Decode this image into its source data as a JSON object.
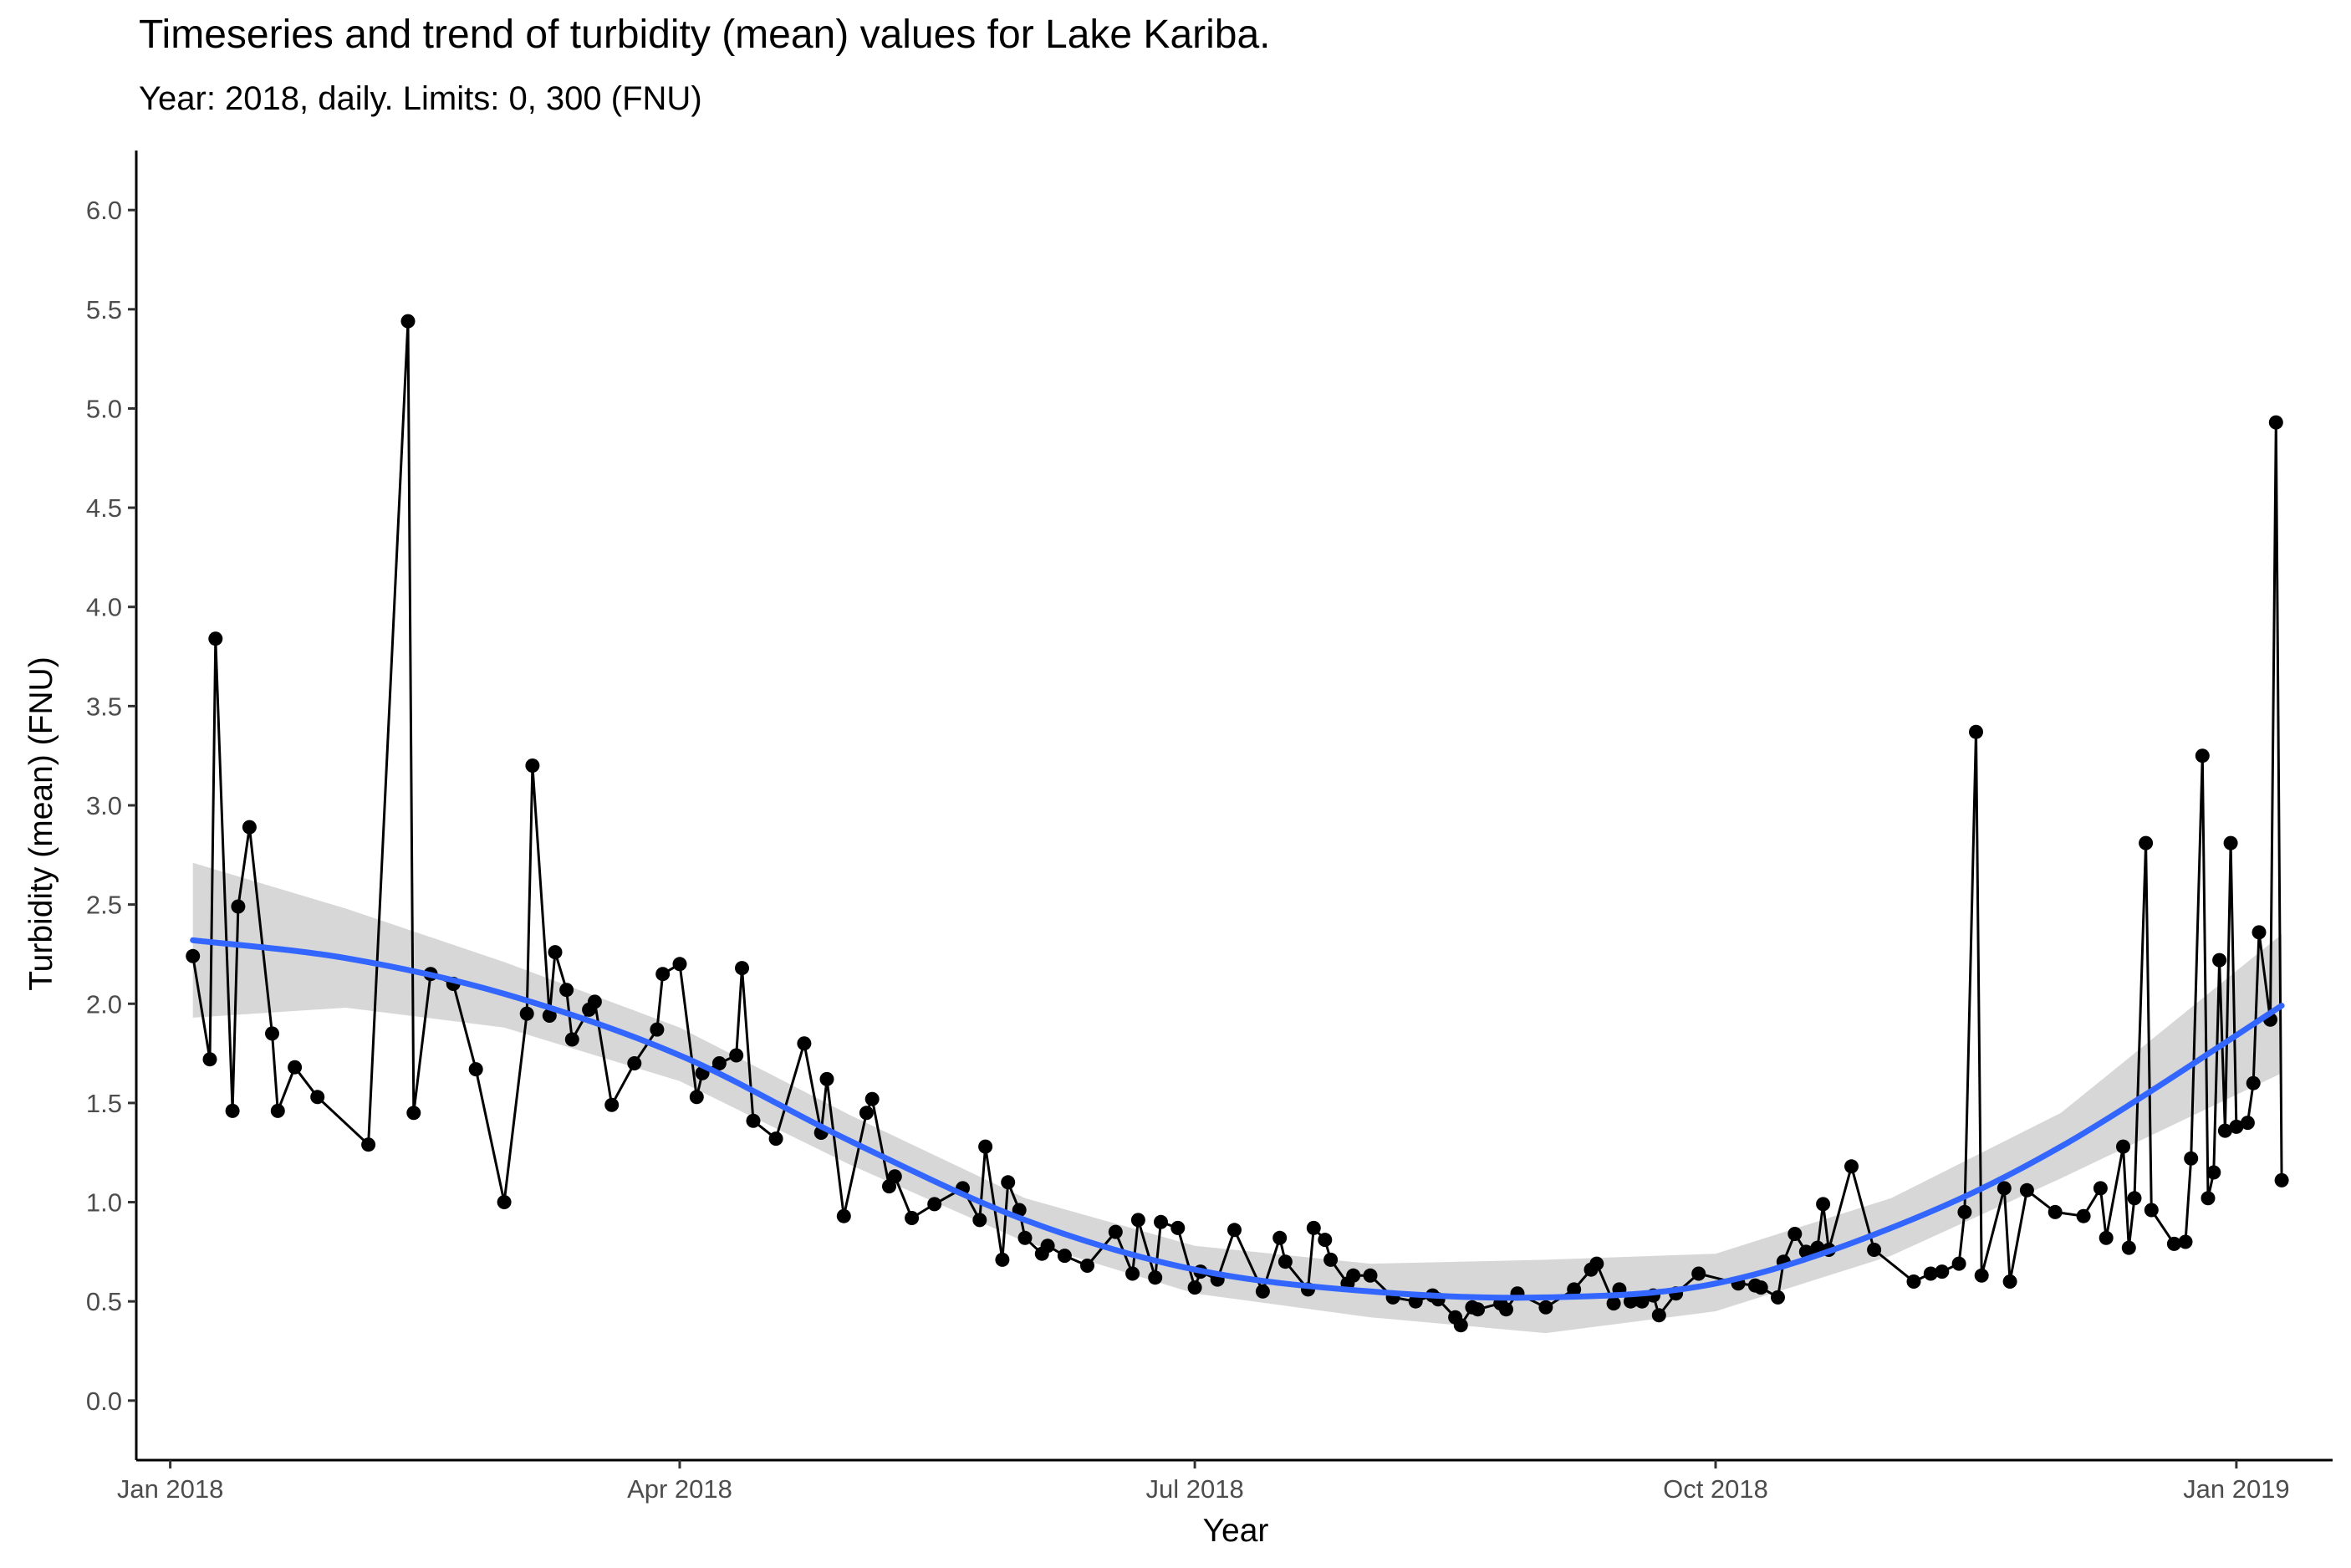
{
  "title": "Timeseries and trend of turbidity (mean) values for Lake Kariba.",
  "subtitle": "Year: 2018, daily. Limits: 0, 300 (FNU)",
  "colors": {
    "line": "#000000",
    "point": "#000000",
    "trend": "#3366ff",
    "ribbon": "#d3d3d3"
  },
  "chart_data": {
    "type": "line",
    "title": "Timeseries and trend of turbidity (mean) values for Lake Kariba.",
    "subtitle": "Year: 2018, daily. Limits: 0, 300 (FNU)",
    "xlabel": "Year",
    "ylabel": "Turbidity (mean) (FNU)",
    "xlim": [
      "2017-12-26",
      "2019-01-18"
    ],
    "ylim": [
      -0.3,
      6.3
    ],
    "x_ticks": [
      {
        "date": "2018-01-01",
        "label": "Jan 2018"
      },
      {
        "date": "2018-04-01",
        "label": "Apr 2018"
      },
      {
        "date": "2018-07-01",
        "label": "Jul 2018"
      },
      {
        "date": "2018-10-01",
        "label": "Oct 2018"
      },
      {
        "date": "2019-01-01",
        "label": "Jan 2019"
      }
    ],
    "y_ticks": [
      "0.0",
      "0.5",
      "1.0",
      "1.5",
      "2.0",
      "2.5",
      "3.0",
      "3.5",
      "4.0",
      "4.5",
      "5.0",
      "5.5",
      "6.0"
    ],
    "grid": false,
    "series": [
      {
        "points": [
          [
            "2018-01-05",
            2.24
          ],
          [
            "2018-01-08",
            1.72
          ],
          [
            "2018-01-09",
            3.84
          ],
          [
            "2018-01-12",
            1.46
          ],
          [
            "2018-01-13",
            2.49
          ],
          [
            "2018-01-15",
            2.89
          ],
          [
            "2018-01-19",
            1.85
          ],
          [
            "2018-01-20",
            1.46
          ],
          [
            "2018-01-23",
            1.68
          ],
          [
            "2018-01-27",
            1.53
          ],
          [
            "2018-02-05",
            1.29
          ],
          [
            "2018-02-12",
            5.44
          ],
          [
            "2018-02-13",
            1.45
          ],
          [
            "2018-02-16",
            2.15
          ],
          [
            "2018-02-20",
            2.1
          ],
          [
            "2018-02-24",
            1.67
          ],
          [
            "2018-03-01",
            1.0
          ],
          [
            "2018-03-05",
            1.95
          ],
          [
            "2018-03-06",
            3.2
          ],
          [
            "2018-03-09",
            1.94
          ],
          [
            "2018-03-10",
            2.26
          ],
          [
            "2018-03-12",
            2.07
          ],
          [
            "2018-03-13",
            1.82
          ],
          [
            "2018-03-16",
            1.97
          ],
          [
            "2018-03-17",
            2.01
          ],
          [
            "2018-03-20",
            1.49
          ],
          [
            "2018-03-24",
            1.7
          ],
          [
            "2018-03-28",
            1.87
          ],
          [
            "2018-03-29",
            2.15
          ],
          [
            "2018-04-01",
            2.2
          ],
          [
            "2018-04-04",
            1.53
          ],
          [
            "2018-04-05",
            1.65
          ],
          [
            "2018-04-08",
            1.7
          ],
          [
            "2018-04-11",
            1.74
          ],
          [
            "2018-04-12",
            2.18
          ],
          [
            "2018-04-14",
            1.41
          ],
          [
            "2018-04-18",
            1.32
          ],
          [
            "2018-04-23",
            1.8
          ],
          [
            "2018-04-26",
            1.35
          ],
          [
            "2018-04-27",
            1.62
          ],
          [
            "2018-04-30",
            0.93
          ],
          [
            "2018-05-04",
            1.45
          ],
          [
            "2018-05-05",
            1.52
          ],
          [
            "2018-05-08",
            1.08
          ],
          [
            "2018-05-09",
            1.13
          ],
          [
            "2018-05-12",
            0.92
          ],
          [
            "2018-05-16",
            0.99
          ],
          [
            "2018-05-21",
            1.07
          ],
          [
            "2018-05-24",
            0.91
          ],
          [
            "2018-05-25",
            1.28
          ],
          [
            "2018-05-28",
            0.71
          ],
          [
            "2018-05-29",
            1.1
          ],
          [
            "2018-05-31",
            0.96
          ],
          [
            "2018-06-01",
            0.82
          ],
          [
            "2018-06-04",
            0.74
          ],
          [
            "2018-06-05",
            0.78
          ],
          [
            "2018-06-08",
            0.73
          ],
          [
            "2018-06-12",
            0.68
          ],
          [
            "2018-06-17",
            0.85
          ],
          [
            "2018-06-20",
            0.64
          ],
          [
            "2018-06-21",
            0.91
          ],
          [
            "2018-06-24",
            0.62
          ],
          [
            "2018-06-25",
            0.9
          ],
          [
            "2018-06-28",
            0.87
          ],
          [
            "2018-07-01",
            0.57
          ],
          [
            "2018-07-02",
            0.65
          ],
          [
            "2018-07-05",
            0.61
          ],
          [
            "2018-07-08",
            0.86
          ],
          [
            "2018-07-13",
            0.55
          ],
          [
            "2018-07-16",
            0.82
          ],
          [
            "2018-07-17",
            0.7
          ],
          [
            "2018-07-21",
            0.56
          ],
          [
            "2018-07-22",
            0.87
          ],
          [
            "2018-07-24",
            0.81
          ],
          [
            "2018-07-25",
            0.71
          ],
          [
            "2018-07-28",
            0.59
          ],
          [
            "2018-07-29",
            0.63
          ],
          [
            "2018-08-01",
            0.63
          ],
          [
            "2018-08-05",
            0.52
          ],
          [
            "2018-08-09",
            0.5
          ],
          [
            "2018-08-12",
            0.53
          ],
          [
            "2018-08-13",
            0.51
          ],
          [
            "2018-08-16",
            0.42
          ],
          [
            "2018-08-17",
            0.38
          ],
          [
            "2018-08-19",
            0.47
          ],
          [
            "2018-08-20",
            0.46
          ],
          [
            "2018-08-24",
            0.49
          ],
          [
            "2018-08-25",
            0.46
          ],
          [
            "2018-08-27",
            0.54
          ],
          [
            "2018-09-01",
            0.47
          ],
          [
            "2018-09-06",
            0.56
          ],
          [
            "2018-09-09",
            0.66
          ],
          [
            "2018-09-10",
            0.69
          ],
          [
            "2018-09-13",
            0.49
          ],
          [
            "2018-09-14",
            0.56
          ],
          [
            "2018-09-16",
            0.5
          ],
          [
            "2018-09-17",
            0.51
          ],
          [
            "2018-09-18",
            0.5
          ],
          [
            "2018-09-20",
            0.53
          ],
          [
            "2018-09-21",
            0.43
          ],
          [
            "2018-09-24",
            0.54
          ],
          [
            "2018-09-28",
            0.64
          ],
          [
            "2018-10-05",
            0.59
          ],
          [
            "2018-10-08",
            0.58
          ],
          [
            "2018-10-09",
            0.57
          ],
          [
            "2018-10-12",
            0.52
          ],
          [
            "2018-10-13",
            0.7
          ],
          [
            "2018-10-15",
            0.84
          ],
          [
            "2018-10-17",
            0.75
          ],
          [
            "2018-10-19",
            0.77
          ],
          [
            "2018-10-20",
            0.99
          ],
          [
            "2018-10-21",
            0.76
          ],
          [
            "2018-10-25",
            1.18
          ],
          [
            "2018-10-29",
            0.76
          ],
          [
            "2018-11-05",
            0.6
          ],
          [
            "2018-11-08",
            0.64
          ],
          [
            "2018-11-10",
            0.65
          ],
          [
            "2018-11-13",
            0.69
          ],
          [
            "2018-11-14",
            0.95
          ],
          [
            "2018-11-16",
            3.37
          ],
          [
            "2018-11-17",
            0.63
          ],
          [
            "2018-11-21",
            1.07
          ],
          [
            "2018-11-22",
            0.6
          ],
          [
            "2018-11-25",
            1.06
          ],
          [
            "2018-11-30",
            0.95
          ],
          [
            "2018-12-05",
            0.93
          ],
          [
            "2018-12-08",
            1.07
          ],
          [
            "2018-12-09",
            0.82
          ],
          [
            "2018-12-12",
            1.28
          ],
          [
            "2018-12-13",
            0.77
          ],
          [
            "2018-12-14",
            1.02
          ],
          [
            "2018-12-16",
            2.81
          ],
          [
            "2018-12-17",
            0.96
          ],
          [
            "2018-12-21",
            0.79
          ],
          [
            "2018-12-23",
            0.8
          ],
          [
            "2018-12-24",
            1.22
          ],
          [
            "2018-12-26",
            3.25
          ],
          [
            "2018-12-27",
            1.02
          ],
          [
            "2018-12-28",
            1.15
          ],
          [
            "2018-12-29",
            2.22
          ],
          [
            "2018-12-30",
            1.36
          ],
          [
            "2018-12-31",
            2.81
          ],
          [
            "2019-01-01",
            1.38
          ],
          [
            "2019-01-03",
            1.4
          ],
          [
            "2019-01-04",
            1.6
          ],
          [
            "2019-01-05",
            2.36
          ],
          [
            "2019-01-07",
            1.92
          ],
          [
            "2019-01-08",
            4.93
          ],
          [
            "2019-01-09",
            1.11
          ]
        ]
      }
    ],
    "trend": {
      "method": "smooth",
      "points": [
        [
          "2018-01-05",
          2.32
        ],
        [
          "2018-02-01",
          2.23
        ],
        [
          "2018-03-01",
          2.05
        ],
        [
          "2018-04-01",
          1.74
        ],
        [
          "2018-05-01",
          1.31
        ],
        [
          "2018-06-01",
          0.91
        ],
        [
          "2018-07-01",
          0.66
        ],
        [
          "2018-08-01",
          0.55
        ],
        [
          "2018-09-01",
          0.52
        ],
        [
          "2018-10-01",
          0.59
        ],
        [
          "2018-11-01",
          0.87
        ],
        [
          "2018-12-01",
          1.28
        ],
        [
          "2019-01-09",
          1.99
        ]
      ],
      "lower": [
        1.93,
        1.98,
        1.88,
        1.61,
        1.19,
        0.8,
        0.54,
        0.42,
        0.34,
        0.45,
        0.73,
        1.12,
        1.65
      ],
      "upper": [
        2.71,
        2.48,
        2.21,
        1.88,
        1.44,
        1.02,
        0.78,
        0.69,
        0.71,
        0.74,
        1.02,
        1.45,
        2.35
      ]
    }
  }
}
